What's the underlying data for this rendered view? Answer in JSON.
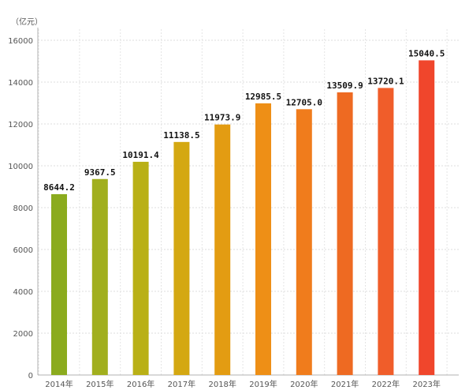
{
  "chart_data": {
    "type": "bar",
    "unit_label": "（亿元）",
    "categories": [
      "2014年",
      "2015年",
      "2016年",
      "2017年",
      "2018年",
      "2019年",
      "2020年",
      "2021年",
      "2022年",
      "2023年"
    ],
    "values": [
      8644.2,
      9367.5,
      10191.4,
      11138.5,
      11973.9,
      12985.5,
      12705.0,
      13509.9,
      13720.1,
      15040.5
    ],
    "value_labels": [
      "8644.2",
      "9367.5",
      "10191.4",
      "11138.5",
      "11973.9",
      "12985.5",
      "12705.0",
      "13509.9",
      "13720.1",
      "15040.5"
    ],
    "y_ticks": [
      0,
      2000,
      4000,
      6000,
      8000,
      10000,
      12000,
      14000,
      16000
    ],
    "y_tick_labels": [
      "0",
      "2000",
      "4000",
      "6000",
      "8000",
      "10000",
      "12000",
      "14000",
      "16000"
    ],
    "ylim": [
      0,
      16000
    ],
    "title": "",
    "xlabel": "",
    "ylabel": "",
    "grid": true,
    "bar_colors": [
      "#8bab1e",
      "#a1af1e",
      "#b9b016",
      "#d4a812",
      "#e39c12",
      "#ee8f16",
      "#f07c1c",
      "#ee6a22",
      "#f05d2a",
      "#f0462c"
    ]
  }
}
